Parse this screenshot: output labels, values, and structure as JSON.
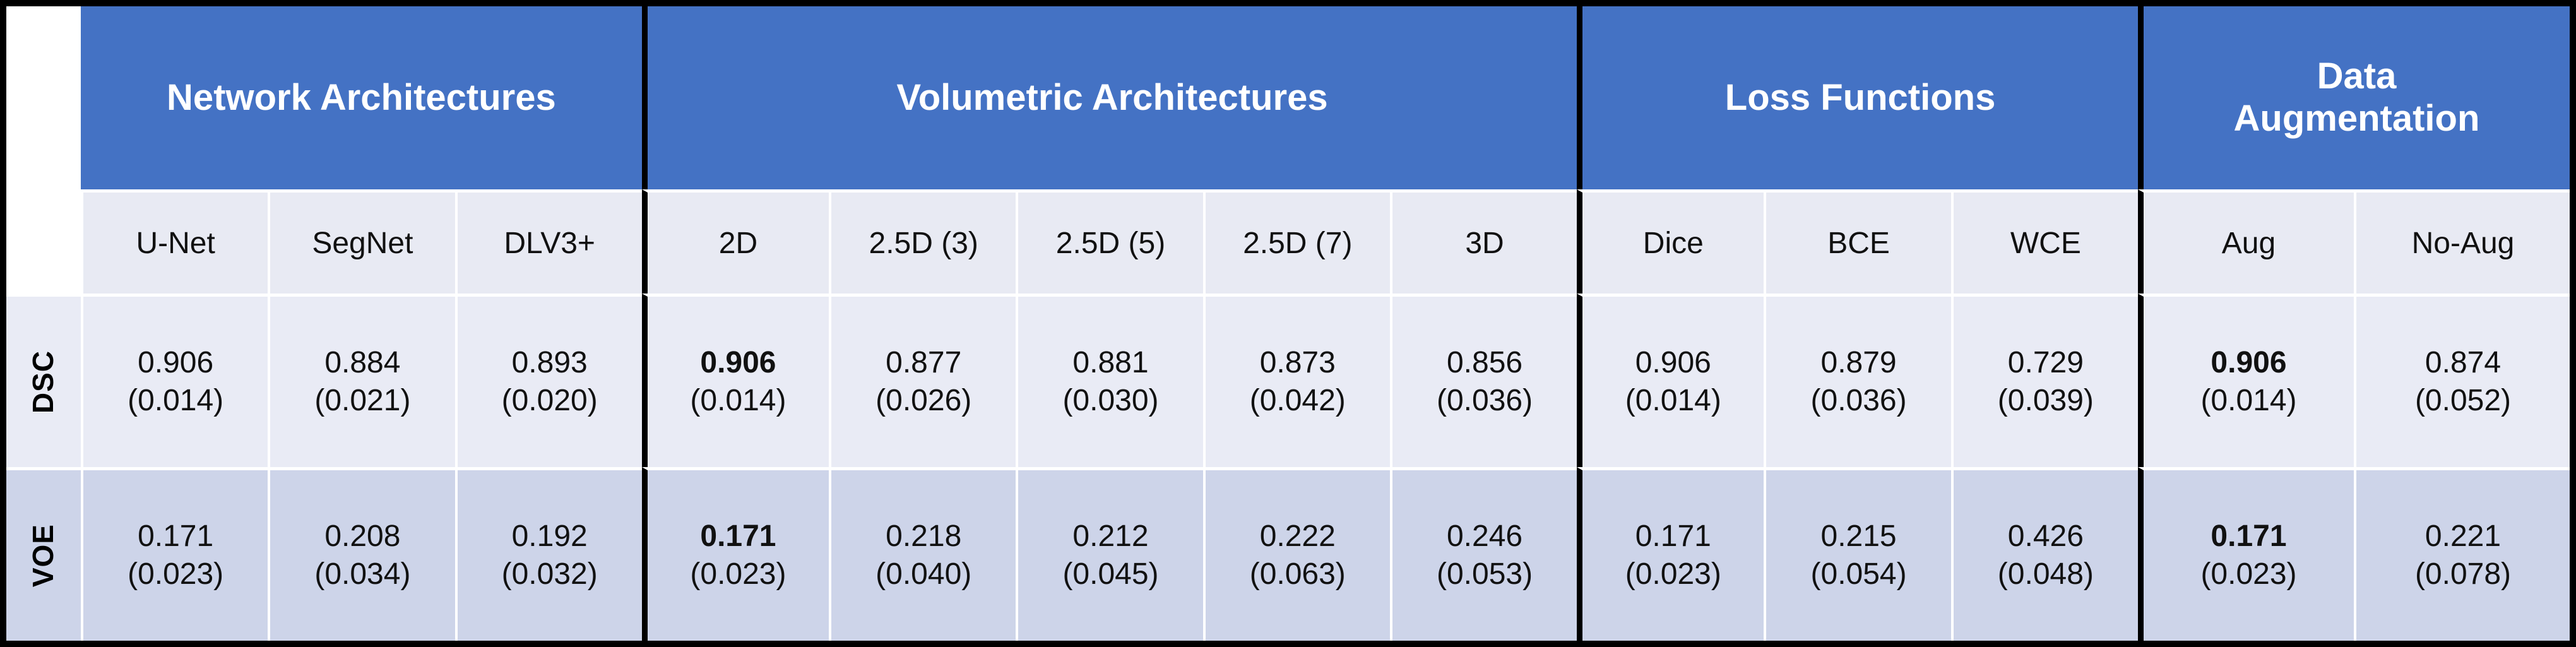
{
  "colors": {
    "header_blue": "#4472C4",
    "band_light": "#E9EBF5",
    "band_dark": "#CDD4E9",
    "band_header": "#E8EAF3",
    "grid_black": "#000000",
    "separator_white": "#FFFFFF",
    "header_text": "#FFFFFF",
    "body_text": "#111111"
  },
  "chart_data": {
    "type": "table",
    "column_groups": [
      {
        "label": "Network Architectures",
        "span": 3
      },
      {
        "label": "Volumetric Architectures",
        "span": 5
      },
      {
        "label": "Loss Functions",
        "span": 3
      },
      {
        "label": "Data Augmentation",
        "span": 2
      }
    ],
    "columns": [
      "U-Net",
      "SegNet",
      "DLV3+",
      "2D",
      "2.5D (3)",
      "2.5D (5)",
      "2.5D (7)",
      "3D",
      "Dice",
      "BCE",
      "WCE",
      "Aug",
      "No-Aug"
    ],
    "rows": [
      {
        "label": "DSC",
        "cells": [
          {
            "v": "0.906",
            "s": "(0.014)",
            "b": false
          },
          {
            "v": "0.884",
            "s": "(0.021)",
            "b": false
          },
          {
            "v": "0.893",
            "s": "(0.020)",
            "b": false
          },
          {
            "v": "0.906",
            "s": "(0.014)",
            "b": true
          },
          {
            "v": "0.877",
            "s": "(0.026)",
            "b": false
          },
          {
            "v": "0.881",
            "s": "(0.030)",
            "b": false
          },
          {
            "v": "0.873",
            "s": "(0.042)",
            "b": false
          },
          {
            "v": "0.856",
            "s": "(0.036)",
            "b": false
          },
          {
            "v": "0.906",
            "s": "(0.014)",
            "b": false
          },
          {
            "v": "0.879",
            "s": "(0.036)",
            "b": false
          },
          {
            "v": "0.729",
            "s": "(0.039)",
            "b": false
          },
          {
            "v": "0.906",
            "s": "(0.014)",
            "b": true
          },
          {
            "v": "0.874",
            "s": "(0.052)",
            "b": false
          }
        ]
      },
      {
        "label": "VOE",
        "cells": [
          {
            "v": "0.171",
            "s": "(0.023)",
            "b": false
          },
          {
            "v": "0.208",
            "s": "(0.034)",
            "b": false
          },
          {
            "v": "0.192",
            "s": "(0.032)",
            "b": false
          },
          {
            "v": "0.171",
            "s": "(0.023)",
            "b": true
          },
          {
            "v": "0.218",
            "s": "(0.040)",
            "b": false
          },
          {
            "v": "0.212",
            "s": "(0.045)",
            "b": false
          },
          {
            "v": "0.222",
            "s": "(0.063)",
            "b": false
          },
          {
            "v": "0.246",
            "s": "(0.053)",
            "b": false
          },
          {
            "v": "0.171",
            "s": "(0.023)",
            "b": false
          },
          {
            "v": "0.215",
            "s": "(0.054)",
            "b": false
          },
          {
            "v": "0.426",
            "s": "(0.048)",
            "b": false
          },
          {
            "v": "0.171",
            "s": "(0.023)",
            "b": true
          },
          {
            "v": "0.221",
            "s": "(0.078)",
            "b": false
          }
        ]
      }
    ]
  }
}
